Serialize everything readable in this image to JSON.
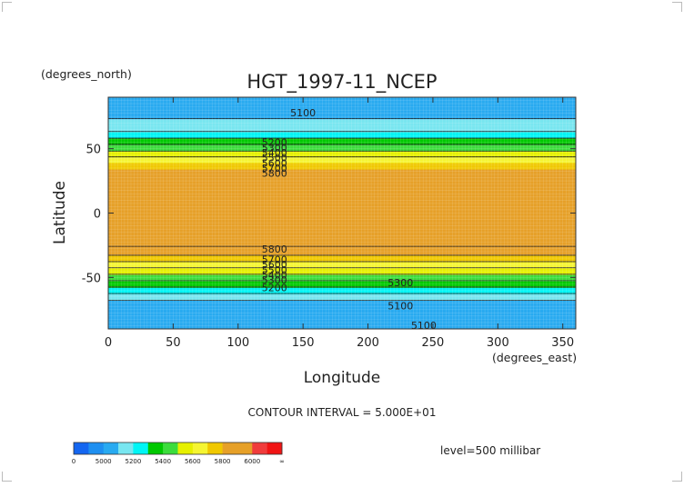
{
  "chart_data": {
    "type": "heatmap",
    "title": "HGT_1997-11_NCEP",
    "xlabel": "Longitude",
    "ylabel": "Latitude",
    "x_unit_label": "(degrees_east)",
    "y_unit_label": "(degrees_north)",
    "xlim": [
      0,
      360
    ],
    "ylim": [
      -90,
      90
    ],
    "x_ticks": [
      0,
      50,
      100,
      150,
      200,
      250,
      300,
      350
    ],
    "y_ticks": [
      -50,
      0,
      50
    ],
    "contour_interval_text": "CONTOUR INTERVAL = 5.000E+01",
    "level_text": "level=500 millibar",
    "colorbar": {
      "boundaries": [
        0,
        4900,
        5000,
        5100,
        5200,
        5300,
        5400,
        5500,
        5600,
        5700,
        5800,
        5900,
        6000,
        6100,
        1000000
      ],
      "labels": [
        "0",
        "5000",
        "5200",
        "5400",
        "5600",
        "5800",
        "6000",
        "∞"
      ],
      "colors": [
        "#1466f0",
        "#1e8ff0",
        "#28aaf0",
        "#78e6f0",
        "#00f5f5",
        "#00c800",
        "#3cdc3c",
        "#e6f000",
        "#f5f532",
        "#f0c800",
        "#e6a028",
        "#e6a028",
        "#f03c3c",
        "#f01414"
      ]
    },
    "lat_profile": {
      "lat": [
        -90,
        -80,
        -70,
        -65,
        -60,
        -55,
        -50,
        -45,
        -40,
        -35,
        -30,
        -25,
        -20,
        25,
        30,
        35,
        40,
        45,
        50,
        55,
        60,
        65,
        70,
        80,
        90
      ],
      "hgt": [
        5080,
        5100,
        5060,
        5150,
        5250,
        5350,
        5450,
        5550,
        5650,
        5760,
        5850,
        5910,
        5930,
        5930,
        5880,
        5780,
        5680,
        5570,
        5460,
        5370,
        5260,
        5170,
        5110,
        5080,
        5060
      ]
    },
    "contour_labels": [
      {
        "text": "5100",
        "lon": 150,
        "lat": 78
      },
      {
        "text": "5200",
        "lon": 128,
        "lat": 55
      },
      {
        "text": "5300",
        "lon": 128,
        "lat": 51
      },
      {
        "text": "5400",
        "lon": 128,
        "lat": 47
      },
      {
        "text": "5500",
        "lon": 128,
        "lat": 43
      },
      {
        "text": "5600",
        "lon": 128,
        "lat": 39
      },
      {
        "text": "5700",
        "lon": 128,
        "lat": 35
      },
      {
        "text": "5800",
        "lon": 128,
        "lat": 31
      },
      {
        "text": "5800",
        "lon": 128,
        "lat": -28
      },
      {
        "text": "5700",
        "lon": 128,
        "lat": -36
      },
      {
        "text": "5600",
        "lon": 128,
        "lat": -40
      },
      {
        "text": "5500",
        "lon": 128,
        "lat": -44
      },
      {
        "text": "5400",
        "lon": 128,
        "lat": -48
      },
      {
        "text": "5300",
        "lon": 128,
        "lat": -52
      },
      {
        "text": "5200",
        "lon": 128,
        "lat": -58
      },
      {
        "text": "5300",
        "lon": 225,
        "lat": -54
      },
      {
        "text": "5100",
        "lon": 225,
        "lat": -72
      },
      {
        "text": "5100",
        "lon": 243,
        "lat": -87
      }
    ]
  }
}
